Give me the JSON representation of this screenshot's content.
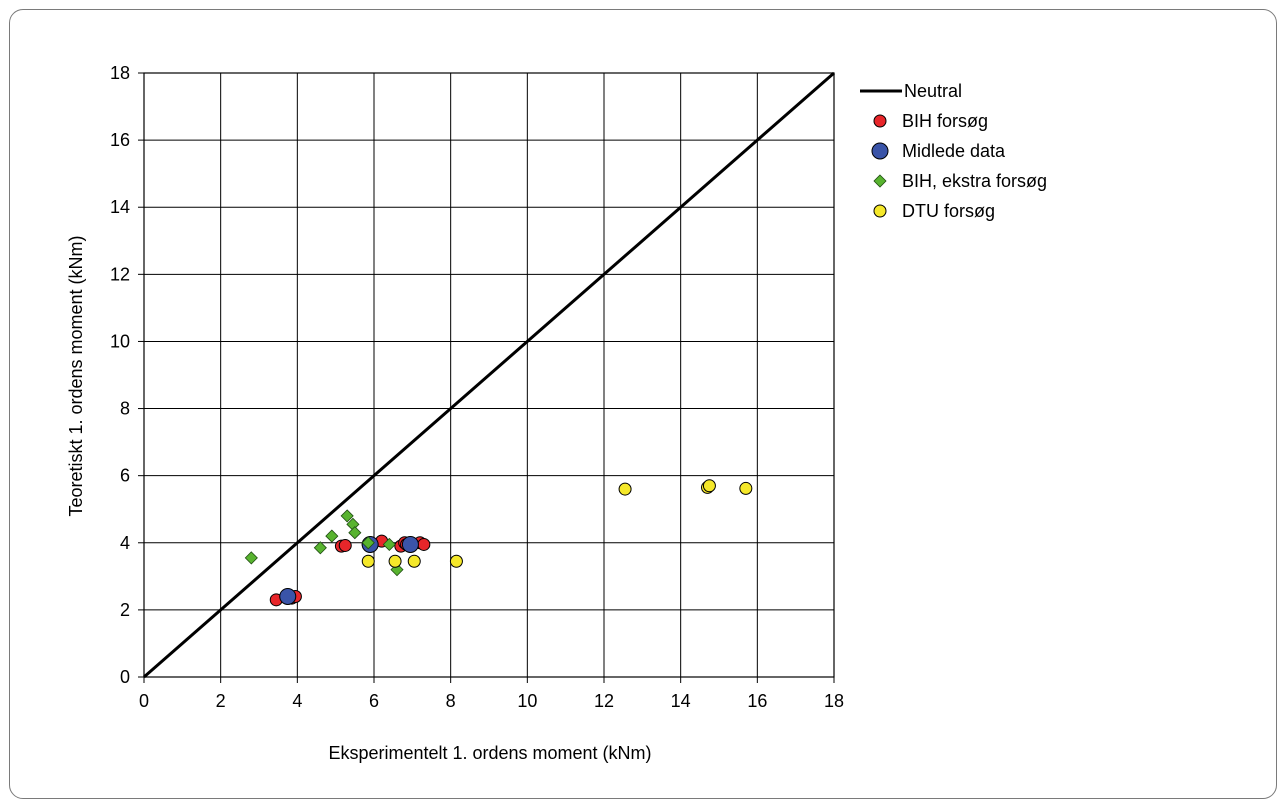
{
  "chart_data": {
    "type": "scatter",
    "xlabel": "Eksperimentelt 1. ordens moment (kNm)",
    "ylabel": "Teoretiskt 1. ordens moment (kNm)",
    "xlim": [
      0,
      18
    ],
    "ylim": [
      0,
      18
    ],
    "xticks": [
      "0",
      "2",
      "4",
      "6",
      "8",
      "10",
      "12",
      "14",
      "16",
      "18"
    ],
    "yticks": [
      "0",
      "2",
      "4",
      "6",
      "8",
      "10",
      "12",
      "14",
      "16",
      "18"
    ],
    "grid": true,
    "legend_position": "right",
    "series": [
      {
        "name": "Neutral",
        "kind": "line",
        "color": "#000000",
        "x": [
          0,
          18
        ],
        "y": [
          0,
          18
        ]
      },
      {
        "name": "BIH forsøg",
        "kind": "circle",
        "color": "#e8262a",
        "x": [
          3.45,
          3.7,
          3.85,
          3.95,
          5.15,
          5.25,
          5.85,
          6.2,
          6.7,
          6.8,
          6.85,
          7.2,
          7.3
        ],
        "y": [
          2.3,
          2.4,
          2.35,
          2.4,
          3.9,
          3.92,
          3.95,
          4.05,
          3.9,
          4.0,
          3.95,
          4.0,
          3.95
        ]
      },
      {
        "name": "Midlede data",
        "kind": "circle-large",
        "color": "#3a54a8",
        "x": [
          3.75,
          5.9,
          6.95
        ],
        "y": [
          2.4,
          3.95,
          3.95
        ]
      },
      {
        "name": "BIH, ekstra forsøg",
        "kind": "diamond",
        "color": "#58b32f",
        "x": [
          2.8,
          4.6,
          4.9,
          5.3,
          5.45,
          5.5,
          5.85,
          6.4,
          6.6
        ],
        "y": [
          3.55,
          3.85,
          4.2,
          4.8,
          4.55,
          4.3,
          4.0,
          3.95,
          3.2
        ]
      },
      {
        "name": "DTU forsøg",
        "kind": "circle",
        "color": "#f5e82a",
        "x": [
          5.85,
          6.55,
          7.05,
          8.15,
          12.55,
          14.7,
          14.75,
          15.7
        ],
        "y": [
          3.45,
          3.45,
          3.45,
          3.45,
          5.6,
          5.65,
          5.7,
          5.62
        ]
      }
    ]
  }
}
